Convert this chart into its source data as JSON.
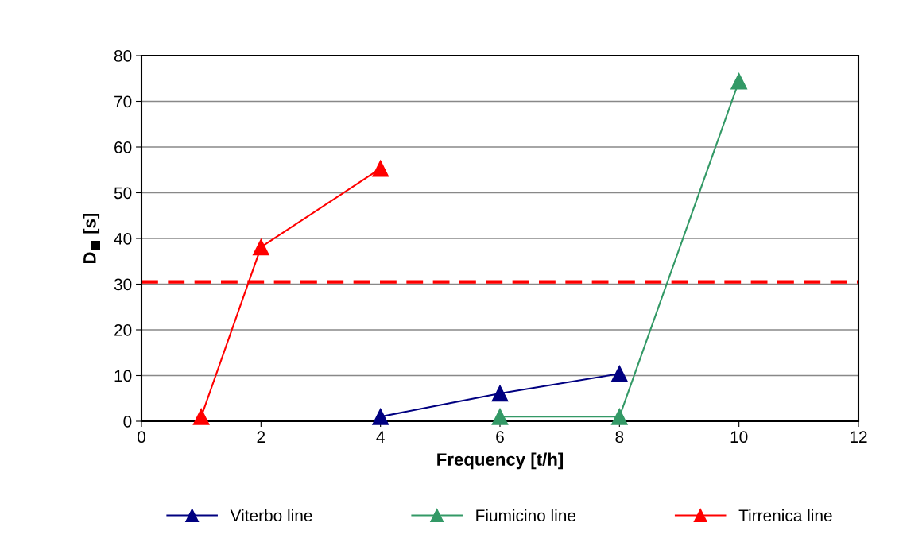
{
  "chart_data": {
    "type": "line",
    "xlabel": "Frequency [t/h]",
    "ylabel": "D$_{■}$ [s]",
    "xlim": [
      0,
      12
    ],
    "xticks": [
      0,
      2,
      4,
      6,
      8,
      10,
      12
    ],
    "ylim": [
      0,
      80
    ],
    "yticks": [
      0,
      10,
      20,
      30,
      40,
      50,
      60,
      70,
      80
    ],
    "grid": "y",
    "legend": "bottom",
    "marker": "triangle",
    "line_style": "solid",
    "series": [
      {
        "name": "Viterbo line",
        "color": "#000080",
        "x": [
          4,
          6,
          8
        ],
        "values": [
          1,
          6.1,
          10.4
        ]
      },
      {
        "name": "Fiumicino line",
        "color": "#339966",
        "x": [
          6,
          8,
          10
        ],
        "values": [
          1,
          1,
          74.4
        ]
      },
      {
        "name": "Tirrenica line",
        "color": "#ff0000",
        "x": [
          1,
          2,
          4
        ],
        "values": [
          1,
          38.1,
          55.3
        ]
      }
    ],
    "ref_lines": [
      {
        "axis": "y",
        "value": 30.5,
        "label": null,
        "color": "#ff0000",
        "line_style": "dashed"
      }
    ]
  }
}
